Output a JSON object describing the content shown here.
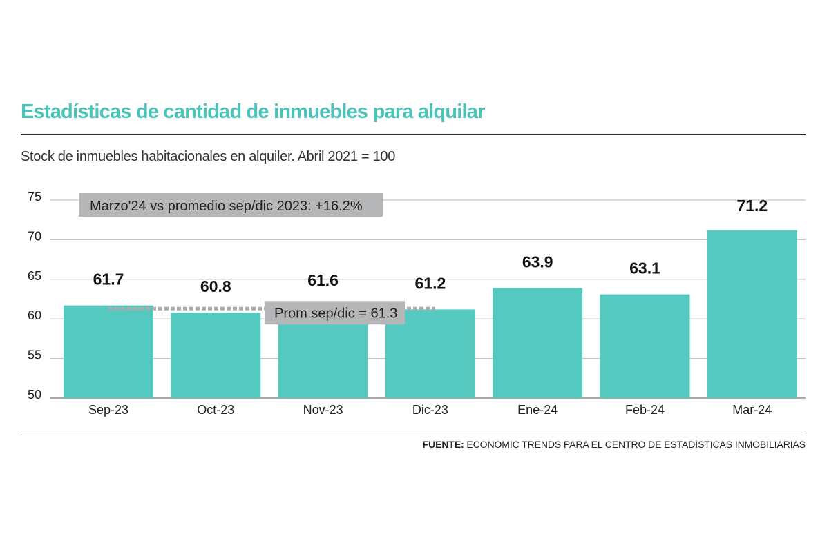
{
  "header": {
    "title": "Estadísticas de cantidad de inmuebles para alquilar",
    "subtitle": "Stock de inmuebles habitacionales en alquiler. Abril 2021 = 100"
  },
  "footer": {
    "source_label": "FUENTE:",
    "source_text": "ECONOMIC TRENDS PARA EL CENTRO DE ESTADÍSTICAS INMOBILIARIAS"
  },
  "colors": {
    "title": "#4cc3b8",
    "bar": "#55c9bf",
    "annotation_box": "#b5b6b8",
    "average_line": "#a9aaab",
    "grid": "#c4c4c4"
  },
  "chart_data": {
    "type": "bar",
    "title": "",
    "xlabel": "",
    "ylabel": "",
    "categories": [
      "Sep-23",
      "Oct-23",
      "Nov-23",
      "Dic-23",
      "Ene-24",
      "Feb-24",
      "Mar-24"
    ],
    "values": [
      61.7,
      60.8,
      61.6,
      61.2,
      63.9,
      63.1,
      71.2
    ],
    "value_labels": [
      "61.7",
      "60.8",
      "61.6",
      "61.2",
      "63.9",
      "63.1",
      "71.2"
    ],
    "ylim": [
      50,
      75
    ],
    "yticks": [
      50,
      55,
      60,
      65,
      70,
      75
    ],
    "grid": true,
    "average_line": {
      "value": 61.3,
      "from_category": "Sep-23",
      "to_category": "Dic-23",
      "label": "Prom sep/dic = 61.3"
    },
    "annotation": "Marzo'24 vs promedio sep/dic 2023: +16.2%"
  }
}
